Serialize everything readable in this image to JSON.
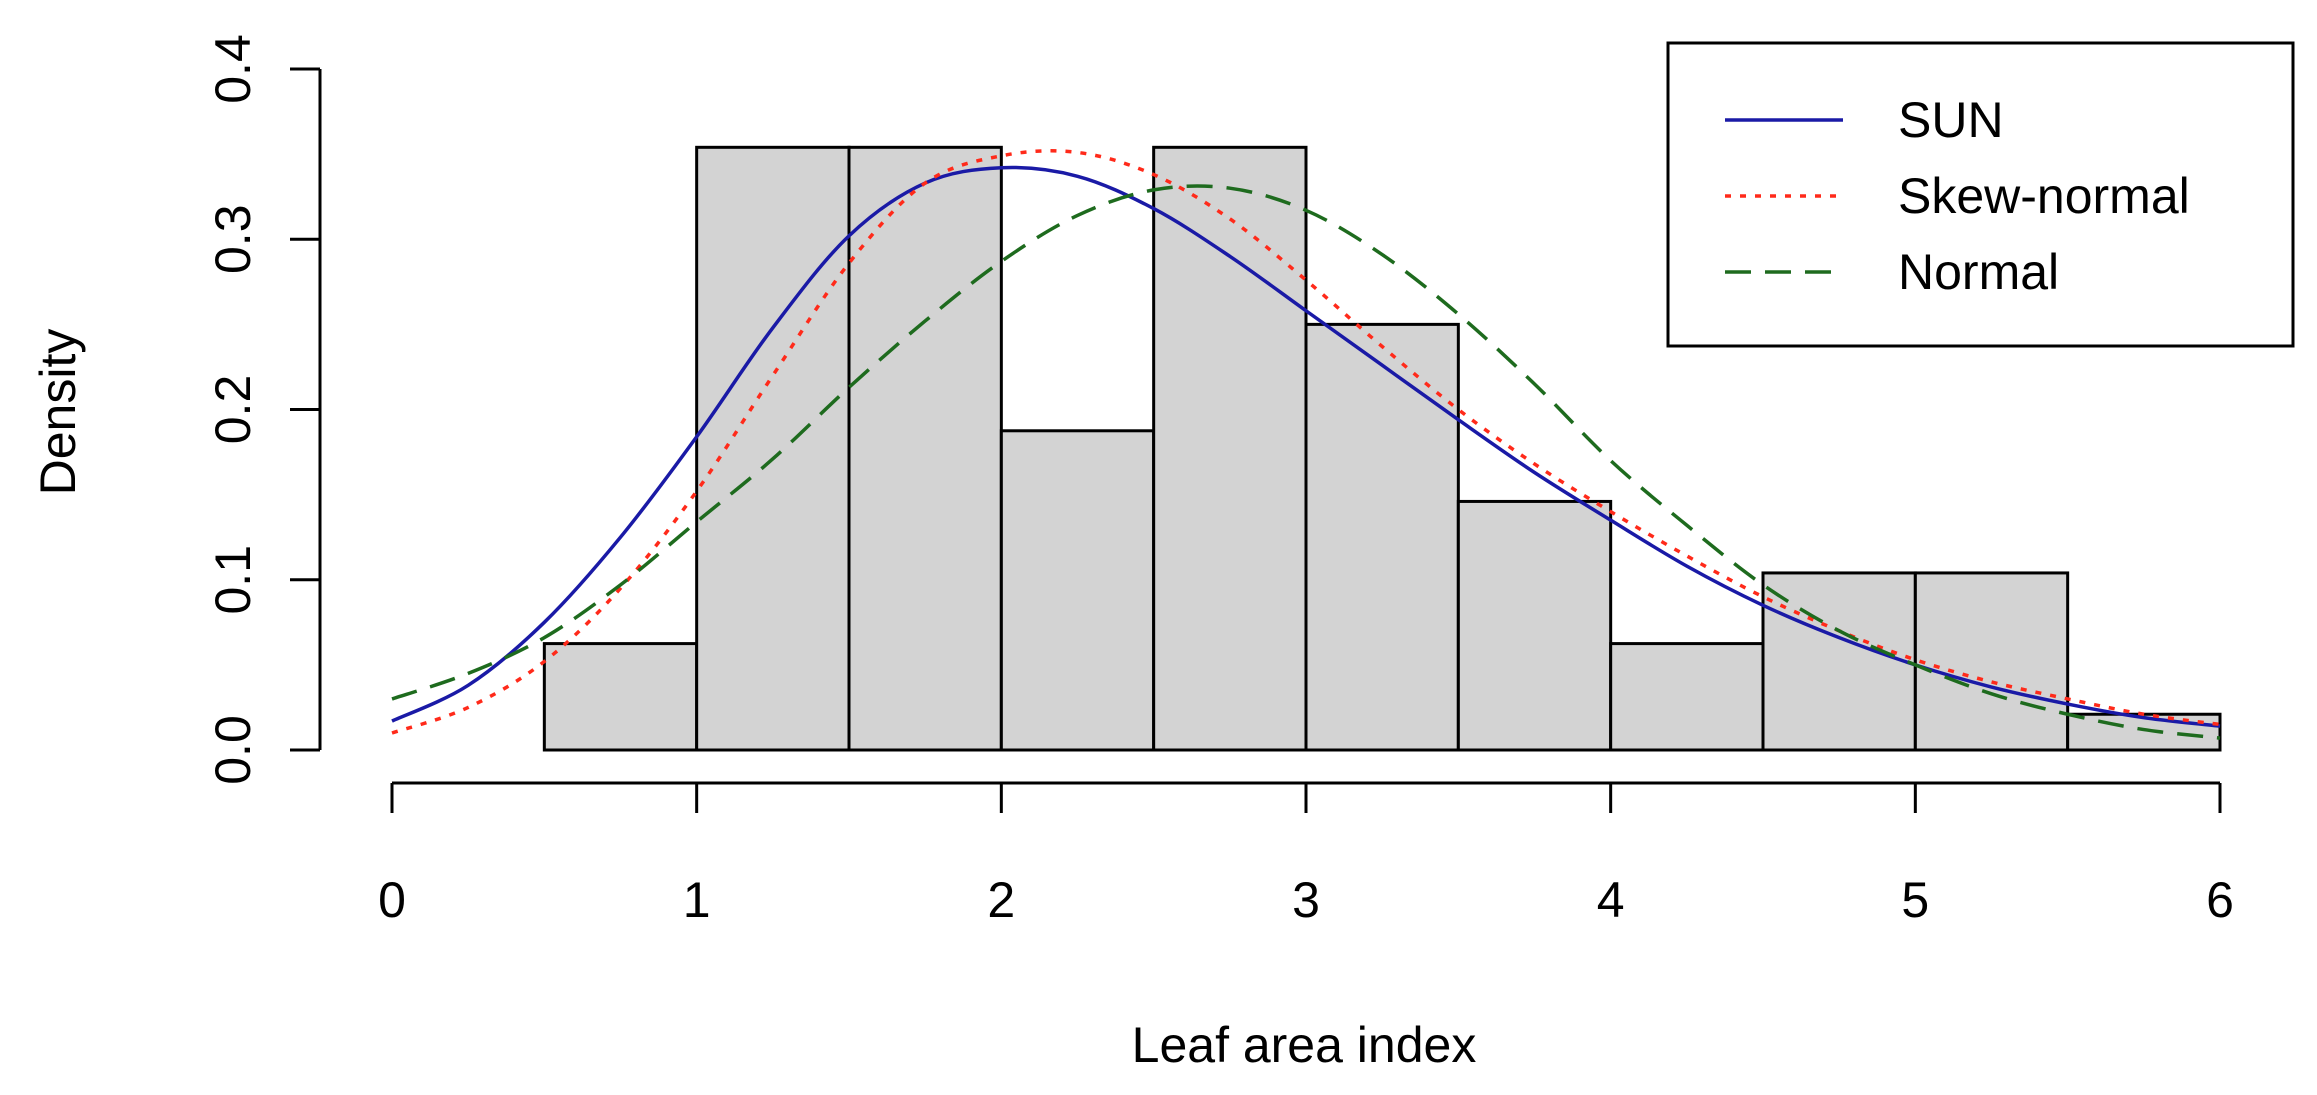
{
  "chart_data": {
    "type": "histogram",
    "title": "",
    "xlabel": "Leaf area index",
    "ylabel": "Density",
    "xlim": [
      0,
      6
    ],
    "ylim": [
      0,
      0.4
    ],
    "x_ticks": [
      "0",
      "1",
      "2",
      "3",
      "4",
      "5",
      "6"
    ],
    "y_ticks": [
      "0.0",
      "0.1",
      "0.2",
      "0.3",
      "0.4"
    ],
    "grid": false,
    "legend_position": "top-right",
    "bars": [
      {
        "x0": 0.5,
        "x1": 1.0,
        "density": 0.0625
      },
      {
        "x0": 1.0,
        "x1": 1.5,
        "density": 0.354
      },
      {
        "x0": 1.5,
        "x1": 2.0,
        "density": 0.354
      },
      {
        "x0": 2.0,
        "x1": 2.5,
        "density": 0.1875
      },
      {
        "x0": 2.5,
        "x1": 3.0,
        "density": 0.354
      },
      {
        "x0": 3.0,
        "x1": 3.5,
        "density": 0.25
      },
      {
        "x0": 3.5,
        "x1": 4.0,
        "density": 0.146
      },
      {
        "x0": 4.0,
        "x1": 4.5,
        "density": 0.0625
      },
      {
        "x0": 4.5,
        "x1": 5.0,
        "density": 0.104
      },
      {
        "x0": 5.0,
        "x1": 5.5,
        "density": 0.104
      },
      {
        "x0": 5.5,
        "x1": 6.0,
        "density": 0.021
      }
    ],
    "bar_fill": "#d3d3d3",
    "series": [
      {
        "name": "SUN",
        "color": "#1a1aa6",
        "dash": "solid",
        "x": [
          0,
          0.25,
          0.5,
          0.75,
          1.0,
          1.25,
          1.5,
          1.75,
          2.0,
          2.25,
          2.5,
          2.75,
          3.0,
          3.25,
          3.5,
          3.75,
          4.0,
          4.25,
          4.5,
          4.75,
          5.0,
          5.25,
          5.5,
          5.75,
          6.0
        ],
        "y": [
          0.017,
          0.038,
          0.075,
          0.125,
          0.184,
          0.248,
          0.302,
          0.333,
          0.342,
          0.337,
          0.318,
          0.29,
          0.258,
          0.226,
          0.194,
          0.163,
          0.135,
          0.108,
          0.085,
          0.066,
          0.05,
          0.037,
          0.027,
          0.019,
          0.014
        ]
      },
      {
        "name": "Skew-normal",
        "color": "#ff2a1a",
        "dash": "dotted",
        "x": [
          0,
          0.25,
          0.5,
          0.75,
          1.0,
          1.25,
          1.5,
          1.75,
          2.0,
          2.25,
          2.5,
          2.75,
          3.0,
          3.25,
          3.5,
          3.75,
          4.0,
          4.25,
          4.5,
          4.75,
          5.0,
          5.25,
          5.5,
          5.75,
          6.0
        ],
        "y": [
          0.01,
          0.025,
          0.052,
          0.095,
          0.152,
          0.22,
          0.286,
          0.333,
          0.349,
          0.351,
          0.338,
          0.312,
          0.276,
          0.237,
          0.2,
          0.168,
          0.14,
          0.114,
          0.09,
          0.07,
          0.053,
          0.04,
          0.03,
          0.021,
          0.015
        ]
      },
      {
        "name": "Normal",
        "color": "#1e6b1e",
        "dash": "dashed",
        "x": [
          0,
          0.25,
          0.5,
          0.75,
          1.0,
          1.25,
          1.5,
          1.75,
          2.0,
          2.25,
          2.5,
          2.75,
          3.0,
          3.25,
          3.5,
          3.75,
          4.0,
          4.25,
          4.5,
          4.75,
          5.0,
          5.25,
          5.5,
          5.75,
          6.0
        ],
        "y": [
          0.03,
          0.045,
          0.066,
          0.097,
          0.134,
          0.171,
          0.213,
          0.252,
          0.287,
          0.314,
          0.329,
          0.33,
          0.317,
          0.291,
          0.256,
          0.215,
          0.17,
          0.132,
          0.097,
          0.07,
          0.05,
          0.033,
          0.021,
          0.012,
          0.007
        ]
      }
    ]
  }
}
